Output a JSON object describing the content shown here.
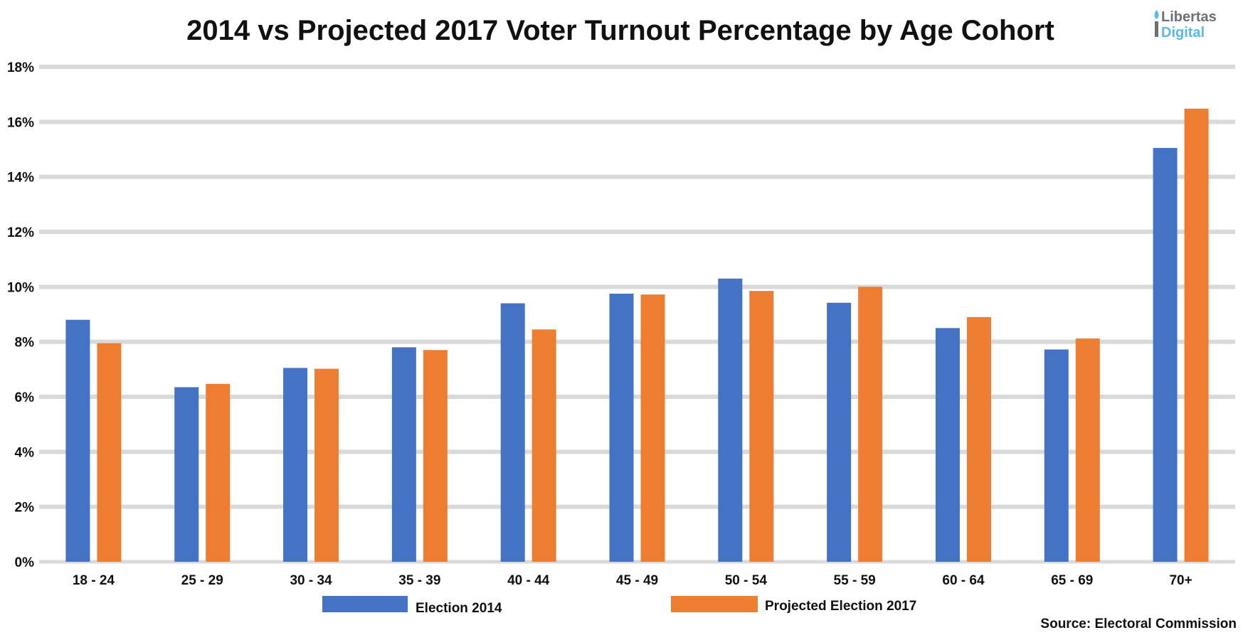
{
  "logo": {
    "line1": "Libertas",
    "line2": "Digital",
    "colors": {
      "line1": "#6a7076",
      "line2": "#5bb8e8"
    }
  },
  "chart_data": {
    "type": "bar",
    "title": "2014 vs Projected 2017 Voter Turnout Percentage by Age Cohort",
    "xlabel": "",
    "ylabel": "",
    "categories": [
      "18 - 24",
      "25 - 29",
      "30 - 34",
      "35 - 39",
      "40 - 44",
      "45 - 49",
      "50 - 54",
      "55 - 59",
      "60 - 64",
      "65 - 69",
      "70+"
    ],
    "series": [
      {
        "name": "Election 2014",
        "color": "#4472c4",
        "values": [
          8.8,
          6.35,
          7.05,
          7.8,
          9.4,
          9.75,
          10.3,
          9.42,
          8.5,
          7.72,
          15.05
        ]
      },
      {
        "name": "Projected Election 2017",
        "color": "#ed7d31",
        "values": [
          7.95,
          6.47,
          7.02,
          7.7,
          8.45,
          9.72,
          9.85,
          10.0,
          8.9,
          8.12,
          16.48
        ]
      }
    ],
    "ylim": [
      0,
      18
    ],
    "yticks": [
      0,
      2,
      4,
      6,
      8,
      10,
      12,
      14,
      16,
      18
    ],
    "ytick_format": "%",
    "grid": true,
    "gridline_color": "#d9d9d9",
    "legend": "bottom-center"
  },
  "source": "Source: Electoral Commission"
}
